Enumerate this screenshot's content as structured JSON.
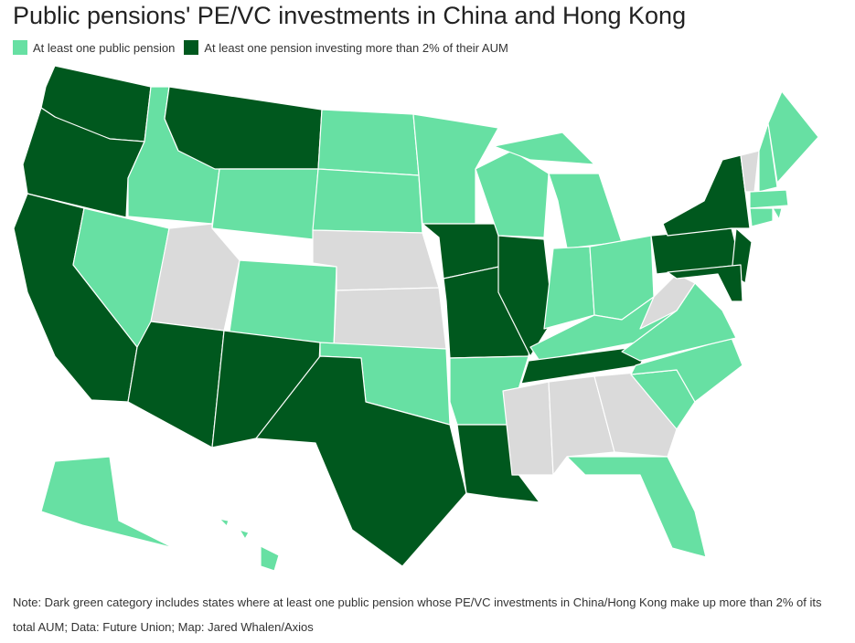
{
  "title": "Public pensions' PE/VC investments in China and Hong Kong",
  "legend": [
    {
      "label": "At least one public pension",
      "color": "#67e0a3"
    },
    {
      "label": "At least one pension investing more than 2% of their AUM",
      "color": "#00581e"
    }
  ],
  "note": "Note: Dark green category includes states where at least one public pension whose PE/VC investments in China/Hong Kong make up more than 2% of its total AUM; Data: Future Union; Map: Jared Whalen/Axios"
}
